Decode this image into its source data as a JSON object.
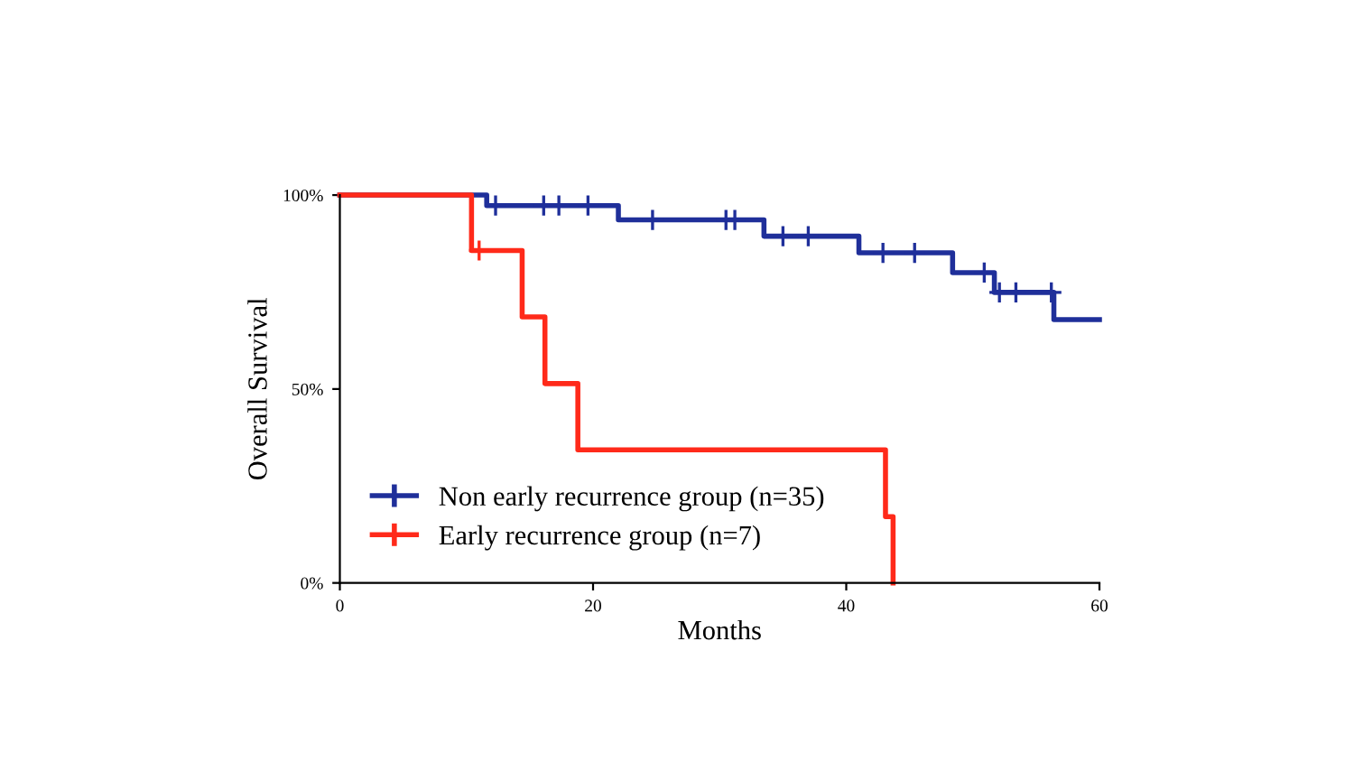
{
  "chart_data": {
    "type": "step",
    "xlabel": "Months",
    "ylabel": "Overall Survival",
    "xlim": [
      0,
      60
    ],
    "xticks": [
      0,
      20,
      40,
      60
    ],
    "ylim": [
      0,
      100
    ],
    "yticks": [
      {
        "value": 0,
        "label": "0%"
      },
      {
        "value": 50,
        "label": "50%"
      },
      {
        "value": 100,
        "label": "100%"
      }
    ],
    "grid": false,
    "legend": "bottom left",
    "series": [
      {
        "name": "Non early recurrence group (n=35)",
        "color": "#1f2f9a",
        "x": [
          0,
          11.6,
          22.0,
          33.5,
          41.0,
          48.4,
          51.7,
          56.4,
          60
        ],
        "values": [
          100,
          97.3,
          93.6,
          89.4,
          85.1,
          80.0,
          74.9,
          67.9,
          67.9
        ]
      },
      {
        "name": "Early recurrence group (n=7)",
        "color": "#ff2a1a",
        "x": [
          0,
          10.4,
          14.4,
          16.2,
          18.8,
          43.1,
          43.7
        ],
        "values": [
          100,
          85.7,
          68.6,
          51.4,
          34.3,
          17.1,
          0
        ]
      },
      {
        "type": "scatter",
        "marker": "cross",
        "color": "#1f2f9a",
        "x": [
          12.3,
          16.1,
          17.3,
          19.6,
          24.7,
          30.5,
          31.2,
          35.0,
          37.0,
          42.9,
          45.4,
          50.9,
          52.1,
          53.4,
          56.2
        ],
        "values": [
          97.3,
          97.3,
          97.3,
          97.3,
          93.6,
          93.6,
          93.6,
          89.4,
          89.4,
          85.1,
          85.1,
          80.0,
          74.9,
          74.9,
          74.9
        ]
      },
      {
        "type": "scatter",
        "marker": "cross",
        "color": "#ff2a1a",
        "x": [
          11.0
        ],
        "values": [
          85.7
        ]
      }
    ]
  }
}
